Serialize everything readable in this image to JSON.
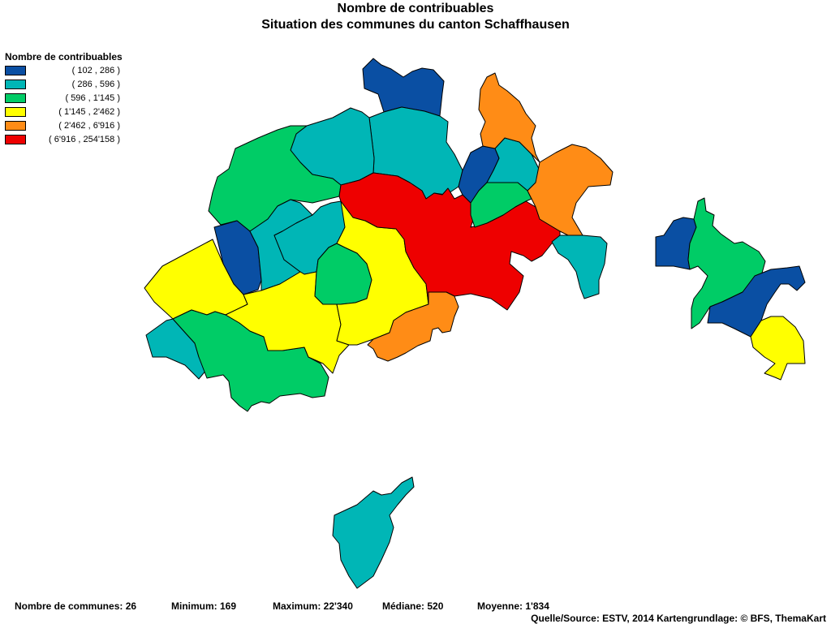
{
  "title_line1": "Nombre de contribuables",
  "title_line2": "Situation des communes du canton Schaffhausen",
  "legend": {
    "title": "Nombre de contribuables",
    "classes": [
      {
        "label": "( 102 , 286 )",
        "color": "#0a4fa3"
      },
      {
        "label": "( 286 , 596 )",
        "color": "#00b6b6"
      },
      {
        "label": "( 596 , 1'145 )",
        "color": "#00cc66"
      },
      {
        "label": "( 1'145 , 2'462 )",
        "color": "#ffff00"
      },
      {
        "label": "( 2'462 , 6'916 )",
        "color": "#ff8c16"
      },
      {
        "label": "( 6'916 , 254'158 )",
        "color": "#ee0000"
      }
    ]
  },
  "stats": {
    "count": "Nombre de communes: 26",
    "min": "Minimum: 169",
    "max": "Maximum: 22'340",
    "median": "Médiane: 520",
    "mean": "Moyenne: 1'834"
  },
  "source": "Quelle/Source: ESTV, 2014 Kartengrundlage: © BFS, ThemaKart"
}
